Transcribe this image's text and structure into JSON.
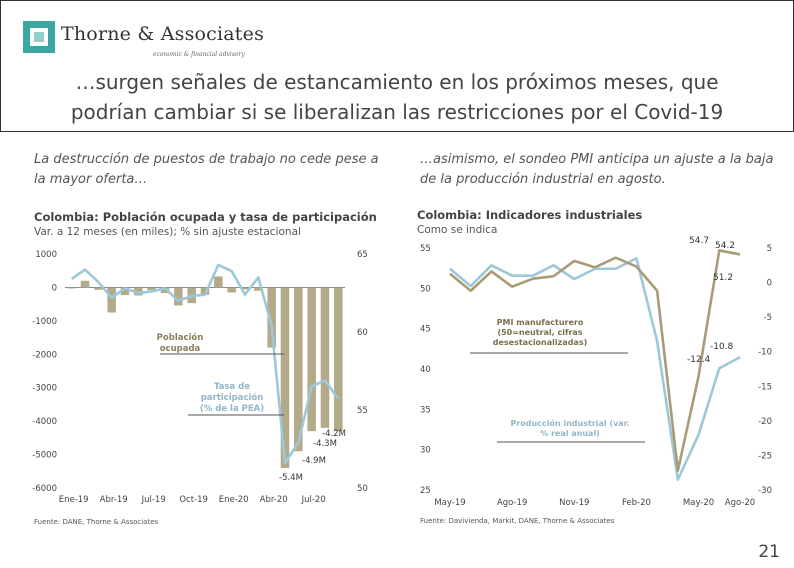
{
  "header": {
    "brand": "Thorne & Associates",
    "brand_sub": "economic & financial advisory",
    "headline_line1": "…surgen señales de estancamiento en los próximos meses, que",
    "headline_line2": "podrían cambiar si se liberalizan las restricciones por el Covid-19"
  },
  "left": {
    "intro": "La destrucción de puestos de trabajo no cede pese a la mayor oferta…",
    "title": "Colombia: Población ocupada y tasa de participación",
    "subtitle": "Var. a 12 meses (en miles); % sin ajuste estacional",
    "source": "Fuente: DANE, Thorne & Associates"
  },
  "right": {
    "intro": "…asimismo, el sondeo PMI anticipa un ajuste a la baja de la producción industrial en agosto.",
    "title": "Colombia: Indicadores industriales",
    "subtitle": "Como se indica",
    "source": "Fuente: Davivienda, Markit, DANE, Thorne & Associates"
  },
  "page_number": "21",
  "colors": {
    "bar": "#b3aa8a",
    "line_olive": "#a89b76",
    "line_blue": "#9ec7d8",
    "teal": "#3aa7a0"
  },
  "chart_data": [
    {
      "type": "bar",
      "title": "Colombia: Población ocupada y tasa de participación",
      "x_tick_labels": [
        "Ene-19",
        "Abr-19",
        "Jul-19",
        "Oct-19",
        "Ene-20",
        "Abr-20",
        "Jul-20"
      ],
      "left_axis": {
        "ylim": [
          -6000,
          1000
        ],
        "ticks": [
          "1000",
          "0",
          "-1000",
          "-2000",
          "-3000",
          "-4000",
          "-5000",
          "-6000"
        ]
      },
      "right_axis": {
        "ylim": [
          50,
          65
        ],
        "ticks": [
          "65",
          "60",
          "55",
          "50"
        ]
      },
      "series": [
        {
          "name": "Población ocupada",
          "axis": "left",
          "type": "bar",
          "values": [
            -30,
            200,
            -70,
            -750,
            -230,
            -240,
            -80,
            -170,
            -540,
            -470,
            -220,
            330,
            -150,
            -60,
            -100,
            -1800,
            -5400,
            -4900,
            -4300,
            -4200,
            -4300
          ]
        },
        {
          "name": "Tasa de participación (% de la PEA)",
          "axis": "right",
          "type": "line",
          "values": [
            63.4,
            64.0,
            63.2,
            62.2,
            62.8,
            62.5,
            62.6,
            62.8,
            62.0,
            62.3,
            62.4,
            64.3,
            63.9,
            62.4,
            63.5,
            60.4,
            51.6,
            52.9,
            56.5,
            56.9,
            55.7
          ]
        }
      ],
      "annotations": [
        "Población ocupada",
        "Tasa de participación (% de la PEA)"
      ],
      "data_labels": [
        "-4.2M",
        "-4.3M",
        "-4.9M",
        "-5.4M"
      ]
    },
    {
      "type": "line",
      "title": "Colombia: Indicadores industriales",
      "x_tick_labels": [
        "May-19",
        "Ago-19",
        "Nov-19",
        "Feb-20",
        "May-20",
        "Ago-20"
      ],
      "left_axis": {
        "ylim": [
          25,
          55
        ],
        "ticks": [
          "55",
          "50",
          "45",
          "40",
          "35",
          "30",
          "25"
        ]
      },
      "right_axis": {
        "ylim": [
          -30,
          5
        ],
        "ticks": [
          "5",
          "0",
          "-5",
          "-10",
          "-15",
          "-20",
          "-25",
          "-30"
        ]
      },
      "series": [
        {
          "name": "PMI manufacturero (50=neutral, cifras desestacionalizadas)",
          "axis": "left",
          "values": [
            51.8,
            49.7,
            52.1,
            50.2,
            51.2,
            51.5,
            53.4,
            52.6,
            53.8,
            52.7,
            49.7,
            27.4,
            39.1,
            54.7,
            54.2
          ]
        },
        {
          "name": "Producción industrial (var. % real anual)",
          "axis": "right",
          "values": [
            2.0,
            -0.5,
            2.5,
            1.0,
            1.0,
            2.5,
            0.5,
            2.0,
            2.0,
            3.5,
            -8.5,
            -28.5,
            -22.0,
            -12.4,
            -10.8
          ]
        }
      ],
      "annotations": [
        "PMI manufacturero (50=neutral, cifras desestacionalizadas)",
        "Producción industrial (var. % real anual)"
      ],
      "data_labels": [
        "54.7",
        "54.2",
        "51.2",
        "-10.8",
        "-12.4"
      ]
    }
  ]
}
